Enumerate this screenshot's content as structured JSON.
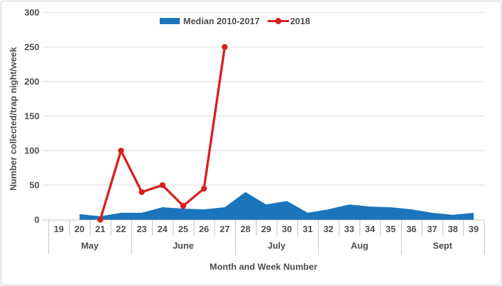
{
  "colors": {
    "area_blue": "#1b75bc",
    "line_red": "#d7211e",
    "grid": "#d9d9d9",
    "axis": "#c6c6c6",
    "text": "#4d4d4d",
    "frame_border": "#c9ced3"
  },
  "chart_data": {
    "type": "area",
    "title": "",
    "xlabel": "Month and Week Number",
    "ylabel": "Number collected/trap night/week",
    "ylim": [
      0,
      300
    ],
    "yticks": [
      0,
      50,
      100,
      150,
      200,
      250,
      300
    ],
    "grid": "horizontal",
    "legend_position": "top-center",
    "categories": [
      19,
      20,
      21,
      22,
      23,
      24,
      25,
      26,
      27,
      28,
      29,
      30,
      31,
      32,
      33,
      34,
      35,
      36,
      37,
      38,
      39
    ],
    "month_groups": [
      {
        "label": "May",
        "span": 4
      },
      {
        "label": "June",
        "span": 5
      },
      {
        "label": "July",
        "span": 4
      },
      {
        "label": "Aug",
        "span": 4
      },
      {
        "label": "Sept",
        "span": 4
      }
    ],
    "series": [
      {
        "name": "Median 2010-2017",
        "type": "area",
        "color": "#1b75bc",
        "x": [
          20,
          21,
          22,
          23,
          24,
          25,
          26,
          27,
          28,
          29,
          30,
          31,
          32,
          33,
          34,
          35,
          36,
          37,
          38,
          39
        ],
        "values": [
          8,
          5,
          10,
          10,
          18,
          16,
          15,
          18,
          40,
          22,
          27,
          10,
          15,
          22,
          19,
          18,
          15,
          10,
          7,
          10
        ]
      },
      {
        "name": "2018",
        "type": "line",
        "color": "#d7211e",
        "x": [
          21,
          22,
          23,
          24,
          25,
          26,
          27
        ],
        "values": [
          0,
          100,
          40,
          50,
          20,
          45,
          250
        ]
      }
    ]
  }
}
